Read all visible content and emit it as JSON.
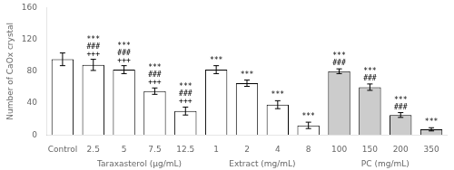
{
  "chart_data": {
    "type": "bar",
    "categories": [
      "Control",
      "2.5",
      "5",
      "7.5",
      "12.5",
      "1",
      "2",
      "4",
      "8",
      "100",
      "150",
      "200",
      "350"
    ],
    "values": [
      95,
      88,
      82,
      55,
      30,
      82,
      65,
      38,
      12,
      80,
      60,
      25,
      7
    ],
    "errors": [
      8,
      7,
      5,
      4,
      5,
      5,
      4,
      5,
      4,
      3,
      4,
      3,
      2
    ],
    "colors": [
      "white",
      "white",
      "white",
      "white",
      "white",
      "white",
      "white",
      "white",
      "white",
      "#cccccc",
      "#cccccc",
      "#cccccc",
      "#cccccc"
    ],
    "ylabel": "Number of CaOx crystal",
    "ylim": [
      0,
      160
    ],
    "yticks": [
      0,
      40,
      80,
      120,
      160
    ],
    "grid": false,
    "annotations": [
      {
        "category": "2.5",
        "texts": [
          "+++",
          "###",
          "***"
        ]
      },
      {
        "category": "5",
        "texts": [
          "+++",
          "###",
          "***"
        ]
      },
      {
        "category": "7.5",
        "texts": [
          "+++",
          "###",
          "***"
        ]
      },
      {
        "category": "12.5",
        "texts": [
          "+++",
          "###",
          "***"
        ]
      },
      {
        "category": "1",
        "texts": [
          "***"
        ]
      },
      {
        "category": "2",
        "texts": [
          "***"
        ]
      },
      {
        "category": "4",
        "texts": [
          "***"
        ]
      },
      {
        "category": "8",
        "texts": [
          "***"
        ]
      },
      {
        "category": "100",
        "texts": [
          "###",
          "***"
        ]
      },
      {
        "category": "150",
        "texts": [
          "###",
          "***"
        ]
      },
      {
        "category": "200",
        "texts": [
          "###",
          "***"
        ]
      },
      {
        "category": "350",
        "texts": [
          "***"
        ]
      }
    ],
    "group_labels": [
      {
        "label": "Taraxasterol (μg/mL)",
        "categories": [
          "2.5",
          "5",
          "7.5",
          "12.5"
        ]
      },
      {
        "label": "Extract (mg/mL)",
        "categories": [
          "1",
          "2",
          "4",
          "8"
        ]
      },
      {
        "label": "PC (mg/mL)",
        "categories": [
          "100",
          "150",
          "200",
          "350"
        ]
      }
    ]
  }
}
